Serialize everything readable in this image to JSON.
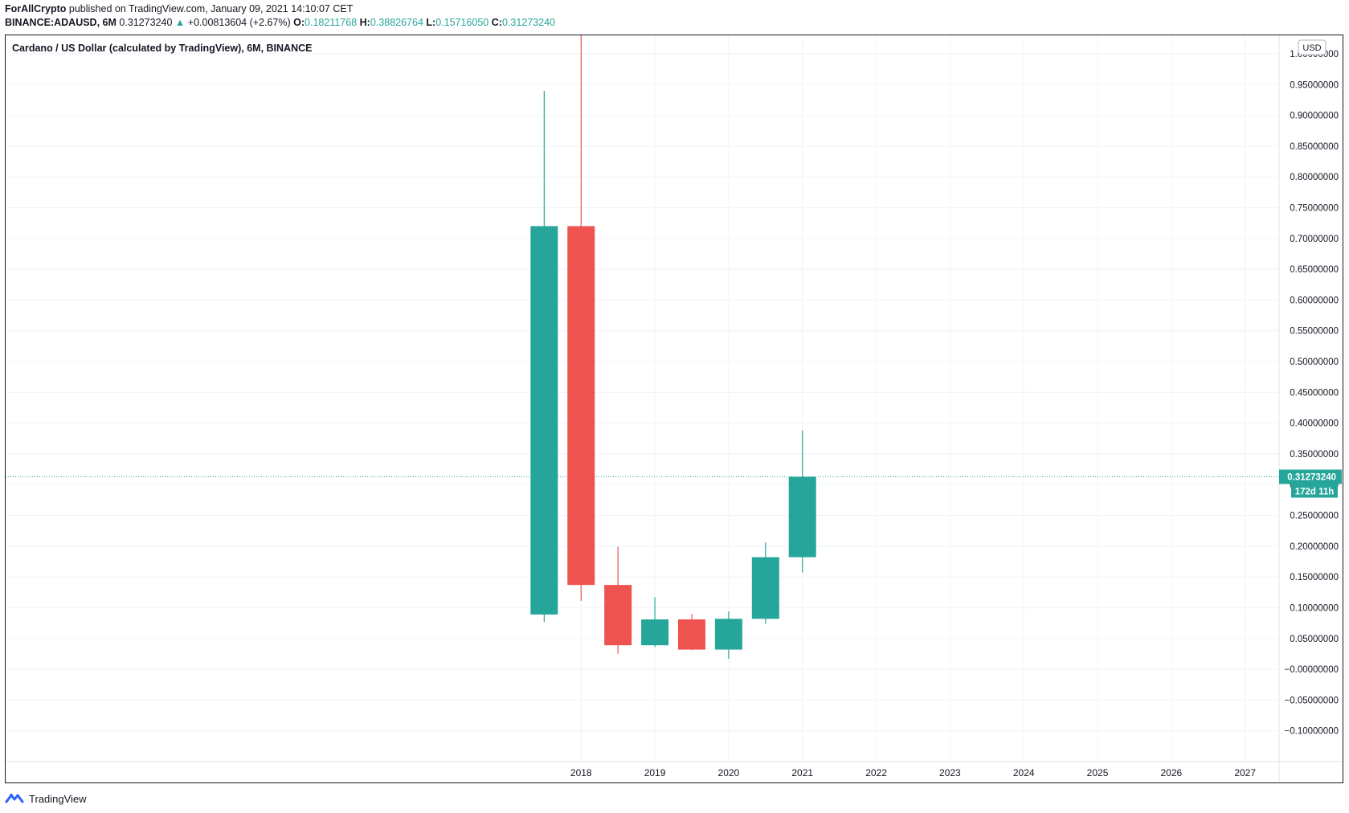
{
  "header": {
    "author": "ForAllCrypto",
    "published_text": "published on TradingView.com, January 09, 2021 14:10:07 CET",
    "symbol_line": "BINANCE:ADAUSD, 6M",
    "last_price": "0.31273240",
    "change_arrow": "▲",
    "change": "+0.00813604 (+2.67%)",
    "open_label": "O:",
    "open": "0.18211768",
    "high_label": "H:",
    "high": "0.38826764",
    "low_label": "L:",
    "low": "0.15716050",
    "close_label": "C:",
    "close": "0.31273240"
  },
  "chart_title": "Cardano / US Dollar (calculated by TradingView), 6M, BINANCE",
  "currency_badge": "USD",
  "price_label": "0.31273240",
  "countdown_label": "172d 11h",
  "footer_brand": "TradingView",
  "colors": {
    "up": "#26a69a",
    "down": "#ef5350",
    "grid": "#f0f3fa",
    "last_price_line": "#26a69a",
    "axis_text": "#131722"
  },
  "chart_data": {
    "type": "candlestick",
    "title": "Cardano / US Dollar (calculated by TradingView), 6M, BINANCE",
    "xlabel": "",
    "ylabel": "",
    "y_tick_labels": [
      "1.00000000",
      "0.95000000",
      "0.90000000",
      "0.85000000",
      "0.80000000",
      "0.75000000",
      "0.70000000",
      "0.65000000",
      "0.60000000",
      "0.55000000",
      "0.50000000",
      "0.45000000",
      "0.40000000",
      "0.35000000",
      "0.30000000",
      "0.25000000",
      "0.20000000",
      "0.15000000",
      "0.10000000",
      "0.05000000",
      "−0.00000000",
      "−0.05000000",
      "−0.10000000"
    ],
    "y_ticks": [
      1.0,
      0.95,
      0.9,
      0.85,
      0.8,
      0.75,
      0.7,
      0.65,
      0.6,
      0.55,
      0.5,
      0.45,
      0.4,
      0.35,
      0.3,
      0.25,
      0.2,
      0.15,
      0.1,
      0.05,
      0.0,
      -0.05,
      -0.1
    ],
    "x_tick_labels": [
      "2018",
      "2019",
      "2020",
      "2021",
      "2022",
      "2023",
      "2024",
      "2025",
      "2026",
      "2027"
    ],
    "x_ticks": [
      2018,
      2019,
      2020,
      2021,
      2022,
      2023,
      2024,
      2025,
      2026,
      2027
    ],
    "ylim": [
      -0.15,
      1.03
    ],
    "xlim": [
      2010.2,
      2027.45
    ],
    "last_price": 0.3127324,
    "candles": [
      {
        "period": "2017 H2",
        "t": 2017.5,
        "open": 0.089,
        "high": 0.94,
        "low": 0.077,
        "close": 0.72
      },
      {
        "period": "2018 H1",
        "t": 2018.0,
        "open": 0.72,
        "high": 1.33,
        "low": 0.111,
        "close": 0.137
      },
      {
        "period": "2018 H2",
        "t": 2018.5,
        "open": 0.137,
        "high": 0.199,
        "low": 0.025,
        "close": 0.039
      },
      {
        "period": "2019 H1",
        "t": 2019.0,
        "open": 0.039,
        "high": 0.117,
        "low": 0.036,
        "close": 0.081
      },
      {
        "period": "2019 H2",
        "t": 2019.5,
        "open": 0.081,
        "high": 0.09,
        "low": 0.031,
        "close": 0.032
      },
      {
        "period": "2020 H1",
        "t": 2020.0,
        "open": 0.032,
        "high": 0.094,
        "low": 0.017,
        "close": 0.082
      },
      {
        "period": "2020 H2",
        "t": 2020.5,
        "open": 0.082,
        "high": 0.206,
        "low": 0.074,
        "close": 0.18211768
      },
      {
        "period": "2021 H1",
        "t": 2021.0,
        "open": 0.18211768,
        "high": 0.38826764,
        "low": 0.1571605,
        "close": 0.3127324
      }
    ]
  }
}
